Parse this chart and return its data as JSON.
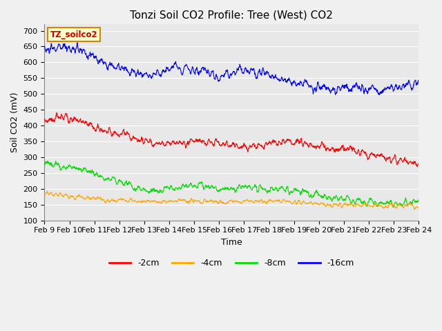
{
  "title": "Tonzi Soil CO2 Profile: Tree (West) CO2",
  "xlabel": "Time",
  "ylabel": "Soil CO2 (mV)",
  "ylim": [
    100,
    720
  ],
  "yticks": [
    100,
    150,
    200,
    250,
    300,
    350,
    400,
    450,
    500,
    550,
    600,
    650,
    700
  ],
  "num_days": 15,
  "num_points": 1440,
  "series": {
    "minus2cm": {
      "color": "#ff0000",
      "label": "-2cm"
    },
    "minus4cm": {
      "color": "#ffa500",
      "label": "-4cm"
    },
    "minus8cm": {
      "color": "#00dd00",
      "label": "-8cm"
    },
    "minus16cm": {
      "color": "#0000ff",
      "label": "-16cm"
    }
  },
  "legend_label": "TZ_soilco2",
  "legend_bg": "#ffffcc",
  "legend_border": "#cc8800",
  "plot_bg": "#e8e8e8",
  "fig_bg": "#f0f0f0",
  "grid_color": "#ffffff",
  "title_fontsize": 11,
  "axis_fontsize": 9,
  "tick_fontsize": 8
}
